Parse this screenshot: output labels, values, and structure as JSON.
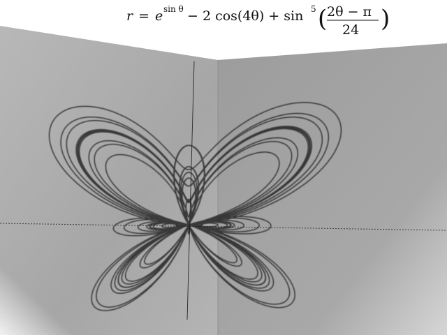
{
  "formula": {
    "lhs": "r",
    "eq": "=",
    "base": "e",
    "exp": "sin θ",
    "term2": "− 2 cos(4θ) + sin",
    "power": "5",
    "numerator": "2θ − π",
    "denominator": "24"
  },
  "plot": {
    "type": "polar",
    "function": "r = e^{sin θ} − 2cos(4θ) + sin^5((2θ − π)/24)",
    "theta_turns": 12,
    "stroke_color": "#1a1a1a",
    "wall_color": "#a9a9a9",
    "axes_color": "#444444"
  }
}
